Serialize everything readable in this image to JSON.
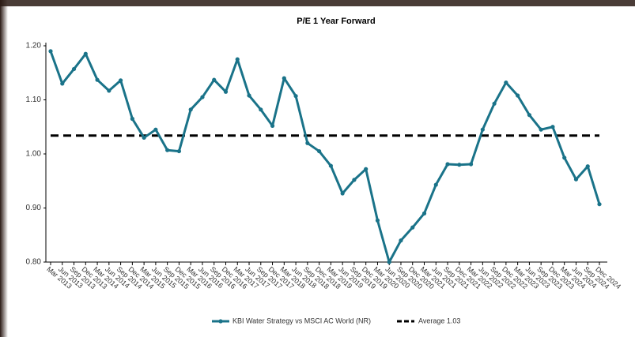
{
  "chart_data": {
    "type": "line",
    "title": "P/E 1 Year Forward",
    "categories": [
      "Mar 2013",
      "Jun 2013",
      "Sep 2013",
      "Dec 2013",
      "Mar 2014",
      "Jun 2014",
      "Sep 2014",
      "Dec 2014",
      "Mar 2015",
      "Jun 2015",
      "Sep 2015",
      "Dec 2015",
      "Mar 2016",
      "Jun 2016",
      "Sep 2016",
      "Dec 2016",
      "Mar 2017",
      "Jun 2017",
      "Sep 2017",
      "Dec 2017",
      "Mar 2018",
      "Jun 2018",
      "Sep 2018",
      "Dec 2018",
      "Mar 2019",
      "Jun 2019",
      "Sep 2019",
      "Dec 2019",
      "Mar 2020",
      "Jun 2020",
      "Sep 2020",
      "Dec 2020",
      "Mar 2021",
      "Jun 2021",
      "Sep 2021",
      "Dec 2021",
      "Mar 2022",
      "Jun 2022",
      "Sep 2022",
      "Dec 2022",
      "Mar 2023",
      "Jun 2023",
      "Sep 2023",
      "Dec 2023",
      "Mar 2024",
      "Jun 2024",
      "Sep 2024",
      "Dec 2024"
    ],
    "series": [
      {
        "name": "KBI Water Strategy vs MSCI AC World (NR)",
        "color": "#1a7389",
        "values": [
          1.19,
          1.13,
          1.157,
          1.185,
          1.137,
          1.117,
          1.136,
          1.065,
          1.03,
          1.045,
          1.007,
          1.005,
          1.082,
          1.105,
          1.137,
          1.115,
          1.175,
          1.108,
          1.082,
          1.052,
          1.14,
          1.107,
          1.02,
          1.005,
          0.978,
          0.927,
          0.952,
          0.972,
          0.877,
          0.8,
          0.84,
          0.864,
          0.89,
          0.943,
          0.981,
          0.98,
          0.981,
          1.045,
          1.093,
          1.132,
          1.108,
          1.072,
          1.045,
          1.05,
          0.993,
          0.953,
          0.977,
          0.907
        ]
      }
    ],
    "average": {
      "name": "Average 1.03",
      "value": 1.034,
      "color": "#000000"
    },
    "ylim": [
      0.8,
      1.2
    ],
    "yticks": [
      {
        "value": 0.8,
        "label": "0.80"
      },
      {
        "value": 0.9,
        "label": "0.90"
      },
      {
        "value": 1.0,
        "label": "1.00"
      },
      {
        "value": 1.1,
        "label": "1.10"
      },
      {
        "value": 1.2,
        "label": "1.20"
      }
    ]
  }
}
